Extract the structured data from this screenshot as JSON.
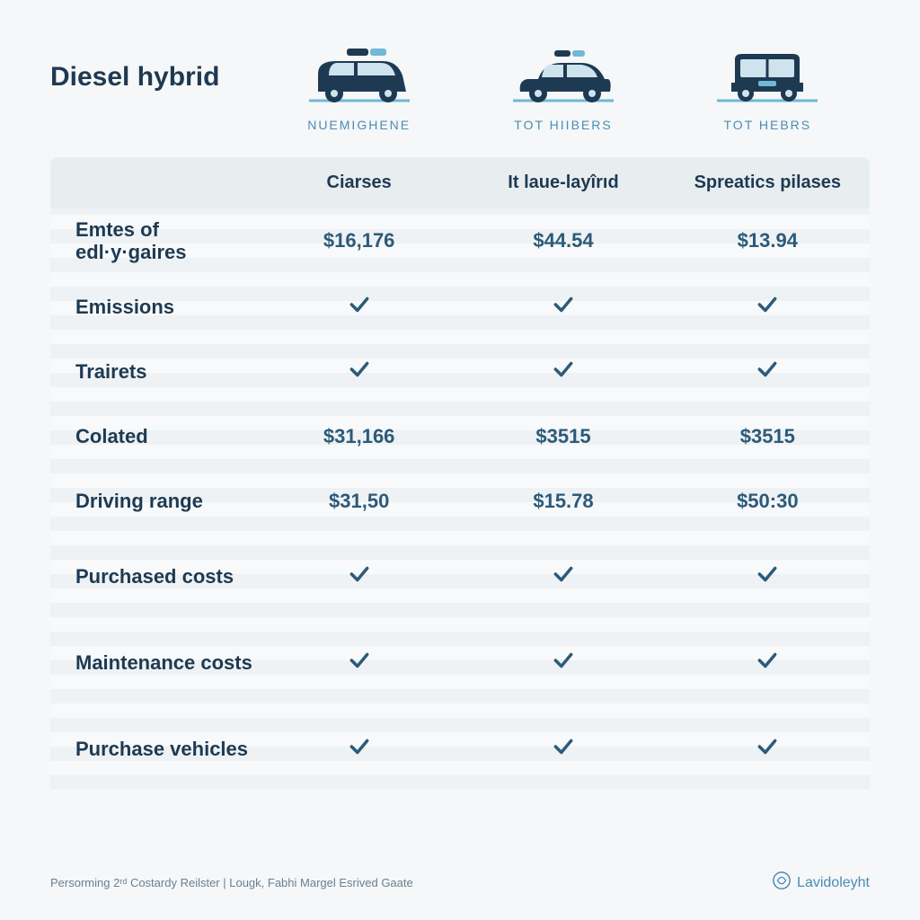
{
  "type": "comparison-table",
  "background_color": "#f5f7f8",
  "text_color": "#1e3a52",
  "value_color": "#2c5a7a",
  "accent_color": "#4a8db5",
  "stripe_light": "#f7f9fa",
  "stripe_dark": "#eef2f4",
  "header_bg": "#e8edf0",
  "title": "Diesel hybrid",
  "title_fontsize": 30,
  "vehicles": [
    {
      "label": "NUEMIGHENE",
      "icon": "suv",
      "body_color": "#1e3a52",
      "roof_accent": "#6fb8d8"
    },
    {
      "label": "TOT HIIBERS",
      "icon": "car",
      "body_color": "#1e3a52",
      "roof_accent": "#6fb8d8"
    },
    {
      "label": "TOT HEBRS",
      "icon": "van",
      "body_color": "#1e3a52",
      "roof_accent": "#6fb8d8"
    }
  ],
  "vehicle_label_fontsize": 14,
  "columns": [
    "Ciarses",
    "It laue-layîrıd",
    "Spreatics pilases"
  ],
  "column_head_fontsize": 20,
  "rows": [
    {
      "label": "Emtes of edl·y·gaires",
      "type": "price",
      "values": [
        "$16,176",
        "$44.54",
        "$13.94"
      ]
    },
    {
      "label": "Emissions",
      "type": "check",
      "values": [
        true,
        true,
        true
      ]
    },
    {
      "label": "Trairets",
      "type": "check",
      "values": [
        true,
        true,
        true
      ]
    },
    {
      "label": "Colated",
      "type": "price",
      "values": [
        "$31,166",
        "$3515",
        "$3515"
      ]
    },
    {
      "label": "Driving range",
      "type": "price",
      "values": [
        "$31,50",
        "$15.78",
        "$50:30"
      ]
    },
    {
      "label": "Purchased costs",
      "type": "check",
      "values": [
        true,
        true,
        true
      ],
      "tall": true
    },
    {
      "label": "Maintenance costs",
      "type": "check",
      "values": [
        true,
        true,
        true
      ],
      "tall": true
    },
    {
      "label": "Purchase vehicles",
      "type": "check",
      "values": [
        true,
        true,
        true
      ],
      "tall": true
    }
  ],
  "row_label_fontsize": 22,
  "cell_fontsize": 22,
  "footer_text": "Persorming 2ʳᵈ Costardy Reilster | Lougk, Fabhi Margel Esrived Gaate",
  "footer_fontsize": 13,
  "brand": "Lavidoleyht"
}
